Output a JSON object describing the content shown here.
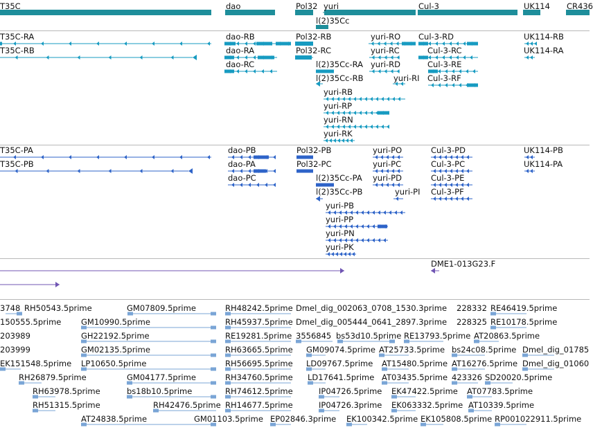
{
  "colors": {
    "gene": "#1e8e9b",
    "transcript_a": "#179bc1",
    "transcript_b": "#2d63c8",
    "clone": "#7055b3",
    "est": "#7aa5d6"
  },
  "genes": [
    {
      "label": "T35C"
    },
    {
      "label": "dao"
    },
    {
      "label": "Pol32"
    },
    {
      "label": "yuri"
    },
    {
      "label": "Cul-3"
    },
    {
      "label": "UK114"
    },
    {
      "label": "CR436"
    },
    {
      "label": "l(2)35Cc"
    }
  ],
  "transcripts_a": [
    {
      "label": "T35C-RA"
    },
    {
      "label": "T35C-RB"
    },
    {
      "label": "dao-RB"
    },
    {
      "label": "dao-RA"
    },
    {
      "label": "dao-RC"
    },
    {
      "label": "Pol32-RB"
    },
    {
      "label": "Pol32-RC"
    },
    {
      "label": "l(2)35Cc-RA"
    },
    {
      "label": "l(2)35Cc-RB"
    },
    {
      "label": "yuri-RO"
    },
    {
      "label": "yuri-RC"
    },
    {
      "label": "yuri-RD"
    },
    {
      "label": "yuri-RI"
    },
    {
      "label": "yuri-RB"
    },
    {
      "label": "yuri-RP"
    },
    {
      "label": "yuri-RN"
    },
    {
      "label": "yuri-RK"
    },
    {
      "label": "Cul-3-RD"
    },
    {
      "label": "Cul-3-RC"
    },
    {
      "label": "Cul-3-RE"
    },
    {
      "label": "Cul-3-RF"
    },
    {
      "label": "UK114-RB"
    },
    {
      "label": "UK114-RA"
    }
  ],
  "transcripts_b": [
    {
      "label": "T35C-PA"
    },
    {
      "label": "T35C-PB"
    },
    {
      "label": "dao-PB"
    },
    {
      "label": "dao-PA"
    },
    {
      "label": "dao-PC"
    },
    {
      "label": "Pol32-PB"
    },
    {
      "label": "Pol32-PC"
    },
    {
      "label": "l(2)35Cc-PA"
    },
    {
      "label": "l(2)35Cc-PB"
    },
    {
      "label": "yuri-PO"
    },
    {
      "label": "yuri-PC"
    },
    {
      "label": "yuri-PD"
    },
    {
      "label": "yuri-PI"
    },
    {
      "label": "yuri-PB"
    },
    {
      "label": "yuri-PP"
    },
    {
      "label": "yuri-PN"
    },
    {
      "label": "yuri-PK"
    },
    {
      "label": "Cul-3-PD"
    },
    {
      "label": "Cul-3-PC"
    },
    {
      "label": "Cul-3-PE"
    },
    {
      "label": "Cul-3-PF"
    },
    {
      "label": "UK114-PB"
    },
    {
      "label": "UK114-PA"
    }
  ],
  "clones": [
    {
      "label": "DME1-013G23.F"
    }
  ],
  "ests": [
    {
      "label": "3748"
    },
    {
      "label": "RH50543.5prime"
    },
    {
      "label": "GM07809.5prime"
    },
    {
      "label": "RH48242.5prime"
    },
    {
      "label": "Dmel_dig_002063_0708_1530.3prime"
    },
    {
      "label": "228332"
    },
    {
      "label": "RE46419.5prime"
    },
    {
      "label": "150555.5prime"
    },
    {
      "label": "GM10990.5prime"
    },
    {
      "label": "RH45937.5prime"
    },
    {
      "label": "Dmel_dig_005444_0641_2897.3prime"
    },
    {
      "label": "228325"
    },
    {
      "label": "RE10178.5prime"
    },
    {
      "label": "203989"
    },
    {
      "label": "GH22192.5prime"
    },
    {
      "label": "RE19281.5prime"
    },
    {
      "label": "3556845"
    },
    {
      "label": "bs53d10.5prime"
    },
    {
      "label": "RE13793.5prime"
    },
    {
      "label": "AT20863.5prime"
    },
    {
      "label": "203999"
    },
    {
      "label": "GM02135.5prime"
    },
    {
      "label": "RH63665.5prime"
    },
    {
      "label": "GM09074.5prime"
    },
    {
      "label": "AT25733.5prime"
    },
    {
      "label": "bs24c08.5prime"
    },
    {
      "label": "Dmel_dig_01785"
    },
    {
      "label": "EK151548.5prime"
    },
    {
      "label": "LP10650.5prime"
    },
    {
      "label": "RH56695.5prime"
    },
    {
      "label": "LD09767.5prime"
    },
    {
      "label": "AT15480.5prime"
    },
    {
      "label": "AT16276.5prime"
    },
    {
      "label": "Dmel_dig_01060"
    },
    {
      "label": "RH26879.5prime"
    },
    {
      "label": "GM04177.5prime"
    },
    {
      "label": "RH34760.5prime"
    },
    {
      "label": "LD17641.5prime"
    },
    {
      "label": "AT03435.5prime"
    },
    {
      "label": "423326"
    },
    {
      "label": "SD20020.5prime"
    },
    {
      "label": "RH63978.5prime"
    },
    {
      "label": "bs18b10.5prime"
    },
    {
      "label": "RH74612.5prime"
    },
    {
      "label": "IP04726.5prime"
    },
    {
      "label": "EK47422.5prime"
    },
    {
      "label": "AT07783.5prime"
    },
    {
      "label": "RH51315.5prime"
    },
    {
      "label": "RH42476.5prime"
    },
    {
      "label": "RH14677.5prime"
    },
    {
      "label": "IP04726.3prime"
    },
    {
      "label": "EK063332.5prime"
    },
    {
      "label": "AT10339.5prime"
    },
    {
      "label": "AT24838.5prime"
    },
    {
      "label": "GM01103.5prime"
    },
    {
      "label": "EP02846.3prime"
    },
    {
      "label": "EK100342.5prime"
    },
    {
      "label": "EK105808.5prime"
    },
    {
      "label": "RP001022911.5prime"
    }
  ]
}
